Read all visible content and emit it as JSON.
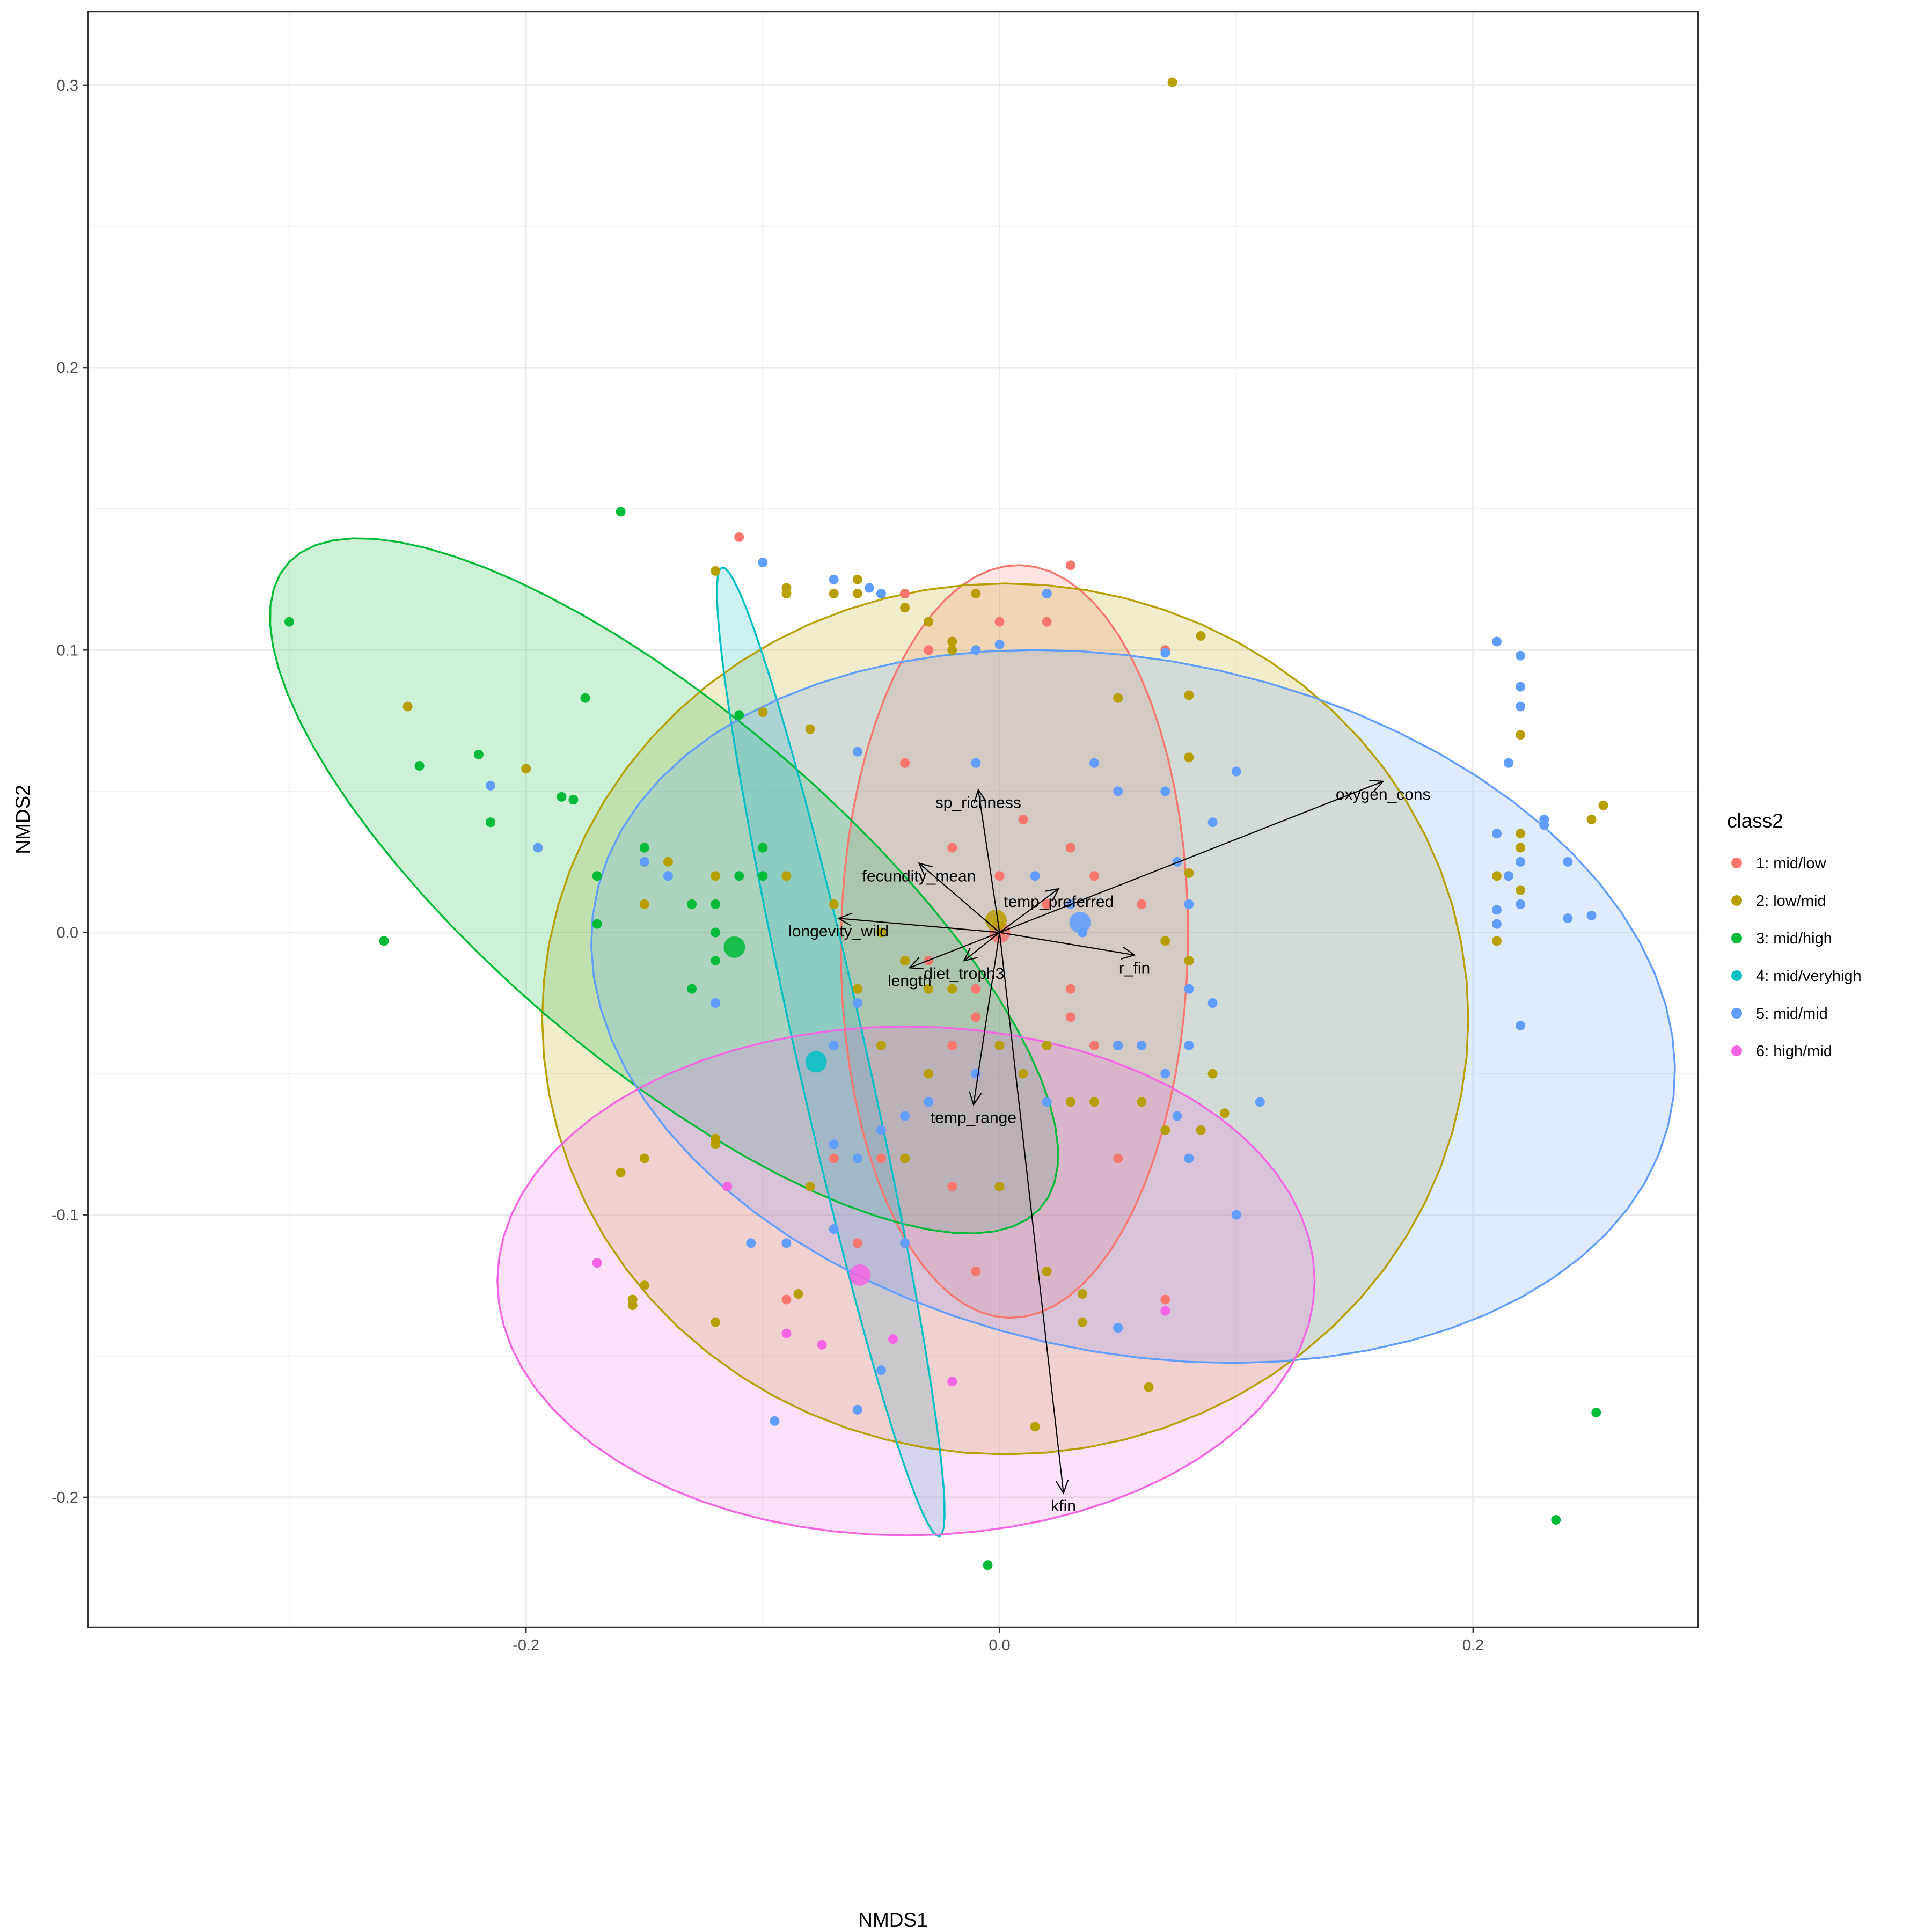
{
  "chart_data": {
    "type": "scatter",
    "xlabel": "NMDS1",
    "ylabel": "NMDS2",
    "xlim": [
      -0.385,
      0.295
    ],
    "ylim": [
      -0.246,
      0.326
    ],
    "x_ticks": [
      {
        "value": -0.2,
        "label": "-0.2"
      },
      {
        "value": 0.0,
        "label": "0.0"
      },
      {
        "value": 0.2,
        "label": "0.2"
      }
    ],
    "y_ticks": [
      {
        "value": -0.2,
        "label": "-0.2"
      },
      {
        "value": -0.1,
        "label": "-0.1"
      },
      {
        "value": 0.0,
        "label": "0.0"
      },
      {
        "value": 0.1,
        "label": "0.1"
      },
      {
        "value": 0.2,
        "label": "0.2"
      },
      {
        "value": 0.3,
        "label": "0.3"
      }
    ],
    "grid": true,
    "legend": {
      "title": "class2",
      "placement": "right",
      "entries": [
        "1: mid/low",
        "2: low/mid",
        "3: mid/high",
        "4: mid/veryhigh",
        "5: mid/mid",
        "6: high/mid"
      ]
    },
    "groups": [
      {
        "label": "1: mid/low",
        "color": "#F8766D",
        "centroid": [
          0.0,
          0.0
        ],
        "ellipse": {
          "center": [
            0.0063,
            -0.0032
          ],
          "rx": 0.0733,
          "ry": 0.1333,
          "angle_deg": -1.0
        },
        "points": [
          [
            -0.11,
            0.14
          ],
          [
            -0.04,
            0.12
          ],
          [
            0.02,
            0.11
          ],
          [
            0.0,
            0.11
          ],
          [
            -0.01,
            0.1
          ],
          [
            0.07,
            0.1
          ],
          [
            -0.03,
            0.1
          ],
          [
            0.03,
            0.13
          ],
          [
            -0.04,
            0.06
          ],
          [
            0.01,
            0.04
          ],
          [
            0.03,
            0.03
          ],
          [
            -0.02,
            0.03
          ],
          [
            0.02,
            0.01
          ],
          [
            -0.03,
            -0.01
          ],
          [
            -0.01,
            -0.03
          ],
          [
            0.04,
            -0.04
          ],
          [
            0.05,
            -0.04
          ],
          [
            -0.02,
            -0.04
          ],
          [
            0.02,
            -0.04
          ],
          [
            0.03,
            -0.02
          ],
          [
            -0.02,
            -0.09
          ],
          [
            0.08,
            -0.08
          ],
          [
            0.06,
            -0.04
          ],
          [
            0.05,
            -0.08
          ],
          [
            -0.07,
            -0.08
          ],
          [
            -0.05,
            -0.08
          ],
          [
            -0.06,
            -0.11
          ],
          [
            -0.01,
            -0.12
          ],
          [
            -0.09,
            -0.13
          ],
          [
            0.07,
            -0.13
          ],
          [
            0.03,
            -0.03
          ],
          [
            -0.01,
            -0.02
          ],
          [
            0.0,
            0.02
          ],
          [
            0.04,
            0.02
          ],
          [
            0.06,
            0.01
          ]
        ]
      },
      {
        "label": "2: low/mid",
        "color": "#B79F00",
        "centroid": [
          -0.0015,
          0.0043
        ],
        "ellipse": {
          "center": [
            0.0024,
            -0.0306
          ],
          "rx": 0.1956,
          "ry": 0.1542,
          "angle_deg": 0.0
        },
        "points": [
          [
            0.073,
            0.301
          ],
          [
            -0.25,
            0.08
          ],
          [
            -0.26,
            -0.003
          ],
          [
            -0.2,
            0.058
          ],
          [
            -0.12,
            0.128
          ],
          [
            -0.09,
            0.122
          ],
          [
            -0.09,
            0.12
          ],
          [
            -0.07,
            0.12
          ],
          [
            -0.06,
            0.125
          ],
          [
            -0.06,
            0.12
          ],
          [
            -0.04,
            0.115
          ],
          [
            -0.03,
            0.11
          ],
          [
            -0.02,
            0.103
          ],
          [
            -0.02,
            0.1
          ],
          [
            -0.01,
            0.12
          ],
          [
            -0.1,
            0.078
          ],
          [
            -0.08,
            0.072
          ],
          [
            0.085,
            0.105
          ],
          [
            0.08,
            0.084
          ],
          [
            0.08,
            0.062
          ],
          [
            0.05,
            0.083
          ],
          [
            0.08,
            0.021
          ],
          [
            0.07,
            -0.003
          ],
          [
            0.08,
            -0.01
          ],
          [
            0.09,
            -0.05
          ],
          [
            0.095,
            -0.064
          ],
          [
            0.085,
            -0.07
          ],
          [
            0.08,
            -0.08
          ],
          [
            0.07,
            -0.07
          ],
          [
            0.06,
            -0.06
          ],
          [
            -0.1,
            0.03
          ],
          [
            -0.12,
            0.02
          ],
          [
            -0.14,
            0.025
          ],
          [
            -0.15,
            0.025
          ],
          [
            -0.15,
            0.01
          ],
          [
            -0.13,
            0.01
          ],
          [
            -0.09,
            0.02
          ],
          [
            -0.07,
            0.01
          ],
          [
            -0.05,
            0.0
          ],
          [
            -0.04,
            -0.01
          ],
          [
            -0.03,
            -0.02
          ],
          [
            -0.02,
            -0.02
          ],
          [
            -0.06,
            -0.02
          ],
          [
            -0.05,
            -0.04
          ],
          [
            0.0,
            -0.04
          ],
          [
            0.02,
            -0.04
          ],
          [
            0.01,
            -0.05
          ],
          [
            -0.03,
            -0.05
          ],
          [
            0.04,
            -0.06
          ],
          [
            0.03,
            -0.06
          ],
          [
            -0.04,
            -0.08
          ],
          [
            -0.08,
            -0.09
          ],
          [
            -0.04,
            -0.11
          ],
          [
            0.0,
            -0.09
          ],
          [
            0.02,
            -0.12
          ],
          [
            -0.15,
            -0.08
          ],
          [
            -0.16,
            -0.085
          ],
          [
            -0.12,
            -0.075
          ],
          [
            -0.12,
            -0.073
          ],
          [
            -0.15,
            -0.125
          ],
          [
            -0.155,
            -0.13
          ],
          [
            -0.155,
            -0.132
          ],
          [
            -0.12,
            -0.138
          ],
          [
            -0.085,
            -0.128
          ],
          [
            0.035,
            -0.128
          ],
          [
            0.035,
            -0.138
          ],
          [
            0.063,
            -0.161
          ],
          [
            0.015,
            -0.175
          ],
          [
            0.255,
            0.045
          ],
          [
            0.25,
            0.04
          ],
          [
            0.22,
            0.07
          ],
          [
            0.22,
            0.035
          ],
          [
            0.22,
            0.03
          ],
          [
            0.21,
            0.02
          ],
          [
            0.21,
            -0.003
          ],
          [
            0.22,
            0.015
          ]
        ]
      },
      {
        "label": "3: mid/high",
        "color": "#00BA38",
        "centroid": [
          -0.112,
          -0.0052
        ],
        "ellipse": {
          "center": [
            -0.1417,
            0.0165
          ],
          "rx": 0.1962,
          "ry": 0.0661,
          "angle_deg": -34.2
        },
        "points": [
          [
            -0.16,
            0.149
          ],
          [
            -0.3,
            0.11
          ],
          [
            -0.175,
            0.083
          ],
          [
            -0.245,
            0.059
          ],
          [
            -0.22,
            0.063
          ],
          [
            -0.215,
            0.039
          ],
          [
            -0.185,
            0.048
          ],
          [
            -0.18,
            0.047
          ],
          [
            -0.17,
            0.02
          ],
          [
            -0.15,
            0.03
          ],
          [
            -0.14,
            0.02
          ],
          [
            -0.13,
            0.01
          ],
          [
            -0.12,
            0.0
          ],
          [
            -0.12,
            0.01
          ],
          [
            -0.12,
            -0.01
          ],
          [
            -0.13,
            -0.02
          ],
          [
            -0.17,
            0.003
          ],
          [
            -0.1,
            0.02
          ],
          [
            -0.1,
            0.03
          ],
          [
            -0.11,
            0.02
          ],
          [
            -0.11,
            0.077
          ],
          [
            -0.26,
            -0.003
          ],
          [
            -0.005,
            -0.224
          ],
          [
            0.252,
            -0.17
          ],
          [
            0.235,
            -0.208
          ]
        ]
      },
      {
        "label": "4: mid/veryhigh",
        "color": "#00BFC4",
        "centroid": [
          -0.0775,
          -0.0458
        ],
        "ellipse": {
          "center": [
            -0.0713,
            -0.0423
          ],
          "rx": 0.1776,
          "ry": 0.0146,
          "angle_deg": -75.0
        },
        "points": []
      },
      {
        "label": "5: mid/mid",
        "color": "#619CFF",
        "centroid": [
          0.034,
          0.0035
        ],
        "ellipse": {
          "center": [
            0.0564,
            -0.0262
          ],
          "rx": 0.2305,
          "ry": 0.1233,
          "angle_deg": -8.0
        },
        "points": [
          [
            -0.1,
            0.131
          ],
          [
            -0.07,
            0.125
          ],
          [
            -0.055,
            0.122
          ],
          [
            -0.05,
            0.12
          ],
          [
            -0.01,
            0.1
          ],
          [
            0.0,
            0.102
          ],
          [
            0.02,
            0.12
          ],
          [
            0.07,
            0.099
          ],
          [
            -0.06,
            0.064
          ],
          [
            -0.01,
            0.06
          ],
          [
            0.04,
            0.06
          ],
          [
            0.05,
            0.05
          ],
          [
            0.07,
            0.05
          ],
          [
            0.1,
            0.057
          ],
          [
            0.09,
            0.039
          ],
          [
            0.075,
            0.025
          ],
          [
            0.08,
            0.01
          ],
          [
            0.08,
            -0.02
          ],
          [
            0.09,
            -0.025
          ],
          [
            0.08,
            -0.04
          ],
          [
            0.07,
            -0.05
          ],
          [
            0.075,
            -0.065
          ],
          [
            0.11,
            -0.06
          ],
          [
            0.08,
            -0.08
          ],
          [
            -0.215,
            0.052
          ],
          [
            -0.195,
            0.03
          ],
          [
            -0.15,
            0.025
          ],
          [
            -0.14,
            0.02
          ],
          [
            -0.12,
            -0.025
          ],
          [
            -0.06,
            -0.025
          ],
          [
            -0.07,
            -0.04
          ],
          [
            -0.01,
            -0.05
          ],
          [
            0.02,
            -0.06
          ],
          [
            0.05,
            -0.04
          ],
          [
            0.06,
            -0.04
          ],
          [
            -0.03,
            -0.06
          ],
          [
            -0.04,
            -0.065
          ],
          [
            -0.05,
            -0.07
          ],
          [
            -0.07,
            -0.075
          ],
          [
            -0.06,
            -0.08
          ],
          [
            -0.105,
            -0.11
          ],
          [
            -0.09,
            -0.11
          ],
          [
            -0.07,
            -0.105
          ],
          [
            -0.04,
            -0.11
          ],
          [
            -0.095,
            -0.173
          ],
          [
            -0.06,
            -0.169
          ],
          [
            -0.05,
            -0.155
          ],
          [
            0.05,
            -0.14
          ],
          [
            0.1,
            -0.1
          ],
          [
            0.21,
            0.103
          ],
          [
            0.22,
            0.098
          ],
          [
            0.22,
            0.087
          ],
          [
            0.22,
            0.08
          ],
          [
            0.215,
            0.06
          ],
          [
            0.21,
            0.035
          ],
          [
            0.22,
            0.025
          ],
          [
            0.215,
            0.02
          ],
          [
            0.22,
            0.01
          ],
          [
            0.21,
            0.008
          ],
          [
            0.21,
            0.003
          ],
          [
            0.24,
            0.005
          ],
          [
            0.24,
            0.025
          ],
          [
            0.25,
            0.006
          ],
          [
            0.23,
            0.04
          ],
          [
            0.23,
            0.038
          ],
          [
            0.22,
            -0.033
          ],
          [
            0.035,
            0.0
          ],
          [
            0.03,
            0.01
          ],
          [
            0.015,
            0.02
          ]
        ]
      },
      {
        "label": "6: high/mid",
        "color": "#F564E3",
        "centroid": [
          -0.059,
          -0.1213
        ],
        "ellipse": {
          "center": [
            -0.0395,
            -0.1234
          ],
          "rx": 0.1726,
          "ry": 0.0901,
          "angle_deg": 0.0
        },
        "points": [
          [
            -0.17,
            -0.117
          ],
          [
            -0.115,
            -0.09
          ],
          [
            -0.09,
            -0.142
          ],
          [
            -0.075,
            -0.146
          ],
          [
            -0.045,
            -0.144
          ],
          [
            -0.02,
            -0.159
          ],
          [
            0.07,
            -0.134
          ]
        ]
      }
    ],
    "vectors": [
      {
        "label": "sp_richness",
        "end": [
          -0.009,
          0.0505
        ]
      },
      {
        "label": "oxygen_cons",
        "end": [
          0.162,
          0.0535
        ]
      },
      {
        "label": "fecundity_mean",
        "end": [
          -0.034,
          0.0245
        ]
      },
      {
        "label": "temp_preferred",
        "end": [
          0.025,
          0.0155
        ]
      },
      {
        "label": "longevity_wild",
        "end": [
          -0.068,
          0.005
        ]
      },
      {
        "label": "diet_troph3",
        "end": [
          -0.015,
          -0.01
        ]
      },
      {
        "label": "length",
        "end": [
          -0.038,
          -0.0125
        ]
      },
      {
        "label": "r_fin",
        "end": [
          0.057,
          -0.008
        ]
      },
      {
        "label": "temp_range",
        "end": [
          -0.011,
          -0.061
        ]
      },
      {
        "label": "kfin",
        "end": [
          0.027,
          -0.1985
        ]
      }
    ]
  }
}
